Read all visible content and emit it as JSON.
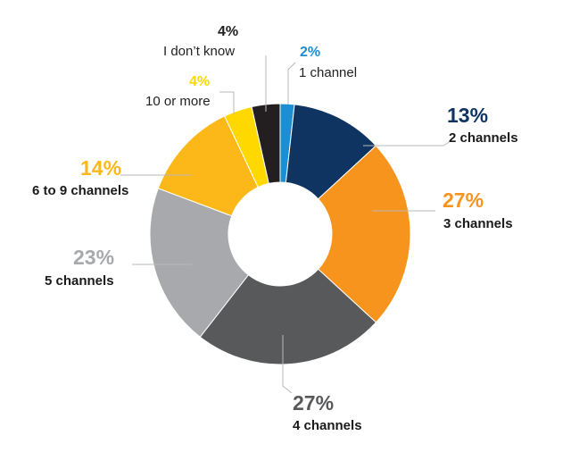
{
  "chart_data": {
    "type": "donut",
    "slices": [
      {
        "label": "1 channel",
        "value": 2,
        "pct_label": "2%",
        "color": "#1b8fd2"
      },
      {
        "label": "2 channels",
        "value": 13,
        "pct_label": "13%",
        "color": "#0f3461"
      },
      {
        "label": "3 channels",
        "value": 27,
        "pct_label": "27%",
        "color": "#f7941d"
      },
      {
        "label": "4 channels",
        "value": 27,
        "pct_label": "27%",
        "color": "#58595b"
      },
      {
        "label": "5 channels",
        "value": 23,
        "pct_label": "23%",
        "color": "#a7a9ac"
      },
      {
        "label": "6 to 9 channels",
        "value": 14,
        "pct_label": "14%",
        "color": "#fbb818"
      },
      {
        "label": "10 or more",
        "value": 4,
        "pct_label": "4%",
        "color": "#ffd800"
      },
      {
        "label": "I don’t know",
        "value": 4,
        "pct_label": "4%",
        "color": "#231f20"
      }
    ]
  }
}
